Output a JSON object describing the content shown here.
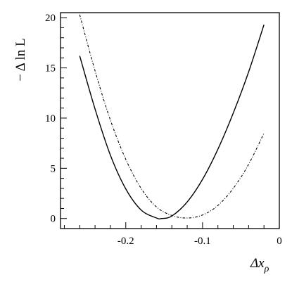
{
  "chart_data": {
    "type": "line",
    "title": "",
    "xlabel": "Δx",
    "xlabel_subscript": "ρ",
    "ylabel": "− Δ ln L",
    "xlim": [
      -0.285,
      0.0
    ],
    "ylim": [
      -1.0,
      20.5
    ],
    "grid": false,
    "legend": "none",
    "x_ticks": [
      {
        "value": -0.2,
        "label": "-0.2"
      },
      {
        "value": -0.1,
        "label": "-0.1"
      },
      {
        "value": 0.0,
        "label": "0"
      }
    ],
    "y_ticks": [
      {
        "value": 0,
        "label": "0"
      },
      {
        "value": 5,
        "label": "5"
      },
      {
        "value": 10,
        "label": "10"
      },
      {
        "value": 15,
        "label": "15"
      },
      {
        "value": 20,
        "label": "20"
      }
    ],
    "series": [
      {
        "style": "solid",
        "color": "#000000",
        "x": [
          -0.26,
          -0.24,
          -0.22,
          -0.2,
          -0.18,
          -0.16,
          -0.153,
          -0.14,
          -0.12,
          -0.1,
          -0.08,
          -0.06,
          -0.04,
          -0.02
        ],
        "y": [
          16.2,
          10.9,
          6.3,
          2.95,
          0.85,
          0.05,
          0.0,
          0.25,
          1.65,
          3.9,
          6.9,
          10.5,
          14.6,
          19.3
        ]
      },
      {
        "style": "dash-dot",
        "color": "#000000",
        "x": [
          -0.26,
          -0.24,
          -0.22,
          -0.2,
          -0.18,
          -0.16,
          -0.14,
          -0.12,
          -0.1,
          -0.08,
          -0.06,
          -0.04,
          -0.02
        ],
        "y": [
          20.3,
          14.7,
          9.8,
          5.9,
          3.0,
          1.15,
          0.3,
          0.05,
          0.35,
          1.3,
          3.0,
          5.4,
          8.5
        ]
      }
    ]
  }
}
